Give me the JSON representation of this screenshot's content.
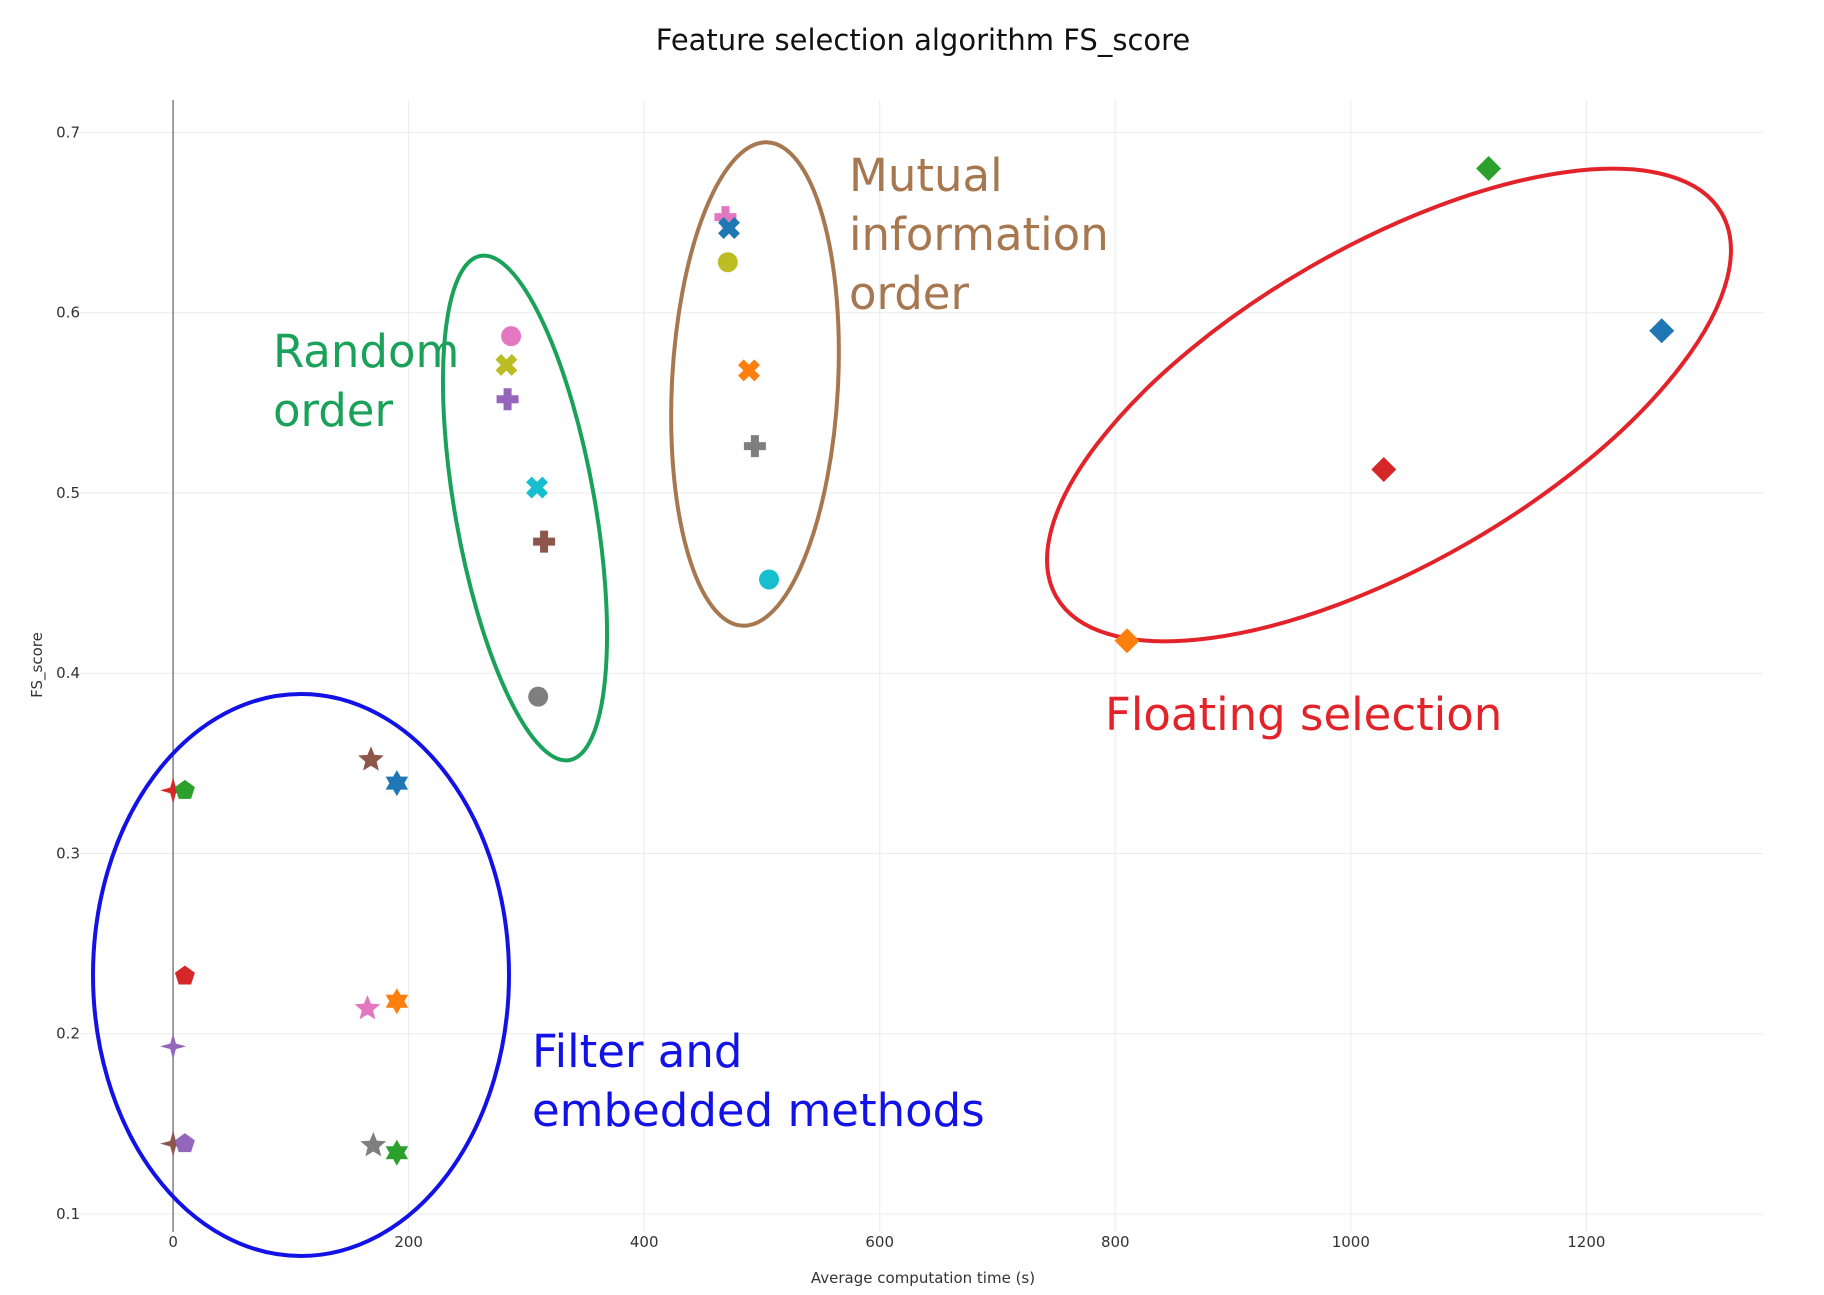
{
  "chart_data": {
    "type": "scatter",
    "title": "Feature selection algorithm FS_score",
    "xlabel": "Average computation time (s)",
    "ylabel": "FS_score",
    "xlim": [
      -85,
      1350
    ],
    "ylim": [
      0.09,
      0.718
    ],
    "x_ticks": [
      0,
      200,
      400,
      600,
      800,
      1000,
      1200
    ],
    "x_tick_labels": [
      "0",
      "200",
      "400",
      "600",
      "800",
      "1000",
      "1200"
    ],
    "y_ticks": [
      0.1,
      0.2,
      0.3,
      0.4,
      0.5,
      0.6,
      0.7
    ],
    "y_tick_labels": [
      "0.1",
      "0.2",
      "0.3",
      "0.4",
      "0.5",
      "0.6",
      "0.7"
    ],
    "grid": true,
    "legend": false,
    "zero_line": true,
    "points": [
      {
        "x": 0,
        "y": 0.335,
        "symbol": "star-4",
        "color": "#d62728"
      },
      {
        "x": 0,
        "y": 0.193,
        "symbol": "star-4",
        "color": "#9467bd"
      },
      {
        "x": 0,
        "y": 0.139,
        "symbol": "star-4",
        "color": "#8c564b"
      },
      {
        "x": 10,
        "y": 0.335,
        "symbol": "pentagon",
        "color": "#2ca02c"
      },
      {
        "x": 10,
        "y": 0.232,
        "symbol": "pentagon",
        "color": "#d62728"
      },
      {
        "x": 10,
        "y": 0.139,
        "symbol": "pentagon",
        "color": "#9467bd"
      },
      {
        "x": 168,
        "y": 0.352,
        "symbol": "star",
        "color": "#8c564b"
      },
      {
        "x": 165,
        "y": 0.214,
        "symbol": "star",
        "color": "#e377c2"
      },
      {
        "x": 170,
        "y": 0.138,
        "symbol": "star",
        "color": "#7f7f7f"
      },
      {
        "x": 190,
        "y": 0.339,
        "symbol": "hexagram",
        "color": "#1f77b4"
      },
      {
        "x": 190,
        "y": 0.218,
        "symbol": "hexagram",
        "color": "#ff7f0e"
      },
      {
        "x": 190,
        "y": 0.134,
        "symbol": "hexagram",
        "color": "#2ca02c"
      },
      {
        "x": 287,
        "y": 0.587,
        "symbol": "circle",
        "color": "#e377c2"
      },
      {
        "x": 283,
        "y": 0.571,
        "symbol": "x",
        "color": "#bcbd22"
      },
      {
        "x": 284,
        "y": 0.552,
        "symbol": "cross",
        "color": "#9467bd"
      },
      {
        "x": 309,
        "y": 0.503,
        "symbol": "x",
        "color": "#17becf"
      },
      {
        "x": 315,
        "y": 0.473,
        "symbol": "cross",
        "color": "#8c564b"
      },
      {
        "x": 310,
        "y": 0.387,
        "symbol": "circle",
        "color": "#7f7f7f"
      },
      {
        "x": 469,
        "y": 0.653,
        "symbol": "cross",
        "color": "#e377c2"
      },
      {
        "x": 472,
        "y": 0.647,
        "symbol": "x",
        "color": "#1f77b4"
      },
      {
        "x": 471,
        "y": 0.628,
        "symbol": "circle",
        "color": "#bcbd22"
      },
      {
        "x": 489,
        "y": 0.568,
        "symbol": "x",
        "color": "#ff7f0e"
      },
      {
        "x": 494,
        "y": 0.526,
        "symbol": "cross",
        "color": "#7f7f7f"
      },
      {
        "x": 506,
        "y": 0.452,
        "symbol": "circle",
        "color": "#17becf"
      },
      {
        "x": 810,
        "y": 0.418,
        "symbol": "diamond",
        "color": "#ff7f0e"
      },
      {
        "x": 1028,
        "y": 0.513,
        "symbol": "diamond",
        "color": "#d62728"
      },
      {
        "x": 1117,
        "y": 0.68,
        "symbol": "diamond",
        "color": "#2ca02c"
      },
      {
        "x": 1264,
        "y": 0.59,
        "symbol": "diamond",
        "color": "#1f77b4"
      }
    ],
    "groups": [
      {
        "label_lines": [
          "Random",
          "order"
        ],
        "color": "#1aa15a"
      },
      {
        "label_lines": [
          "Mutual",
          "information",
          "order"
        ],
        "color": "#a7774f"
      },
      {
        "label_lines": [
          "Floating selection"
        ],
        "color": "#e3232a"
      },
      {
        "label_lines": [
          "Filter and",
          "embedded methods"
        ],
        "color": "#1212e6"
      }
    ]
  }
}
